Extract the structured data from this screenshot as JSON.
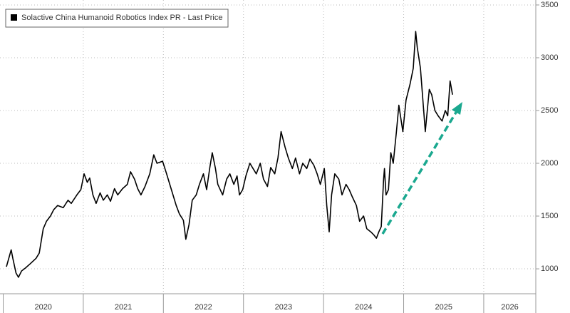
{
  "chart_data": {
    "type": "line",
    "x": [
      2020.04,
      2020.1,
      2020.12,
      2020.16,
      2020.19,
      2020.23,
      2020.28,
      2020.34,
      2020.41,
      2020.45,
      2020.5,
      2020.54,
      2020.59,
      2020.63,
      2020.68,
      2020.75,
      2020.81,
      2020.85,
      2020.92,
      2020.97,
      2021.01,
      2021.05,
      2021.08,
      2021.12,
      2021.16,
      2021.21,
      2021.25,
      2021.3,
      2021.34,
      2021.39,
      2021.43,
      2021.49,
      2021.55,
      2021.59,
      2021.64,
      2021.68,
      2021.72,
      2021.77,
      2021.83,
      2021.88,
      2021.92,
      2021.99,
      2022.04,
      2022.08,
      2022.12,
      2022.16,
      2022.2,
      2022.25,
      2022.28,
      2022.32,
      2022.36,
      2022.41,
      2022.45,
      2022.5,
      2022.54,
      2022.58,
      2022.61,
      2022.65,
      2022.68,
      2022.74,
      2022.79,
      2022.83,
      2022.88,
      2022.92,
      2022.95,
      2022.99,
      2023.03,
      2023.08,
      2023.12,
      2023.16,
      2023.21,
      2023.25,
      2023.3,
      2023.34,
      2023.39,
      2023.43,
      2023.47,
      2023.52,
      2023.56,
      2023.61,
      2023.65,
      2023.7,
      2023.74,
      2023.79,
      2023.83,
      2023.88,
      2023.92,
      2023.96,
      2024.01,
      2024.04,
      2024.07,
      2024.1,
      2024.14,
      2024.19,
      2024.23,
      2024.28,
      2024.32,
      2024.36,
      2024.41,
      2024.45,
      2024.5,
      2024.54,
      2024.59,
      2024.63,
      2024.66,
      2024.69,
      2024.72,
      2024.75,
      2024.76,
      2024.78,
      2024.81,
      2024.84,
      2024.87,
      2024.91,
      2024.94,
      2024.99,
      2025.03,
      2025.08,
      2025.12,
      2025.15,
      2025.17,
      2025.21,
      2025.24,
      2025.27,
      2025.32,
      2025.35,
      2025.39,
      2025.43,
      2025.48,
      2025.52,
      2025.55,
      2025.58,
      2025.61
    ],
    "series": [
      {
        "name": "Solactive China Humanoid Robotics Index PR - Last Price",
        "color": "#000000",
        "values": [
          1020,
          1180,
          1100,
          960,
          920,
          980,
          1010,
          1050,
          1100,
          1150,
          1380,
          1450,
          1500,
          1560,
          1600,
          1580,
          1650,
          1620,
          1700,
          1750,
          1900,
          1820,
          1860,
          1700,
          1620,
          1720,
          1650,
          1700,
          1640,
          1760,
          1700,
          1760,
          1800,
          1920,
          1850,
          1760,
          1700,
          1780,
          1900,
          2080,
          2000,
          2020,
          1900,
          1800,
          1700,
          1600,
          1520,
          1460,
          1280,
          1420,
          1650,
          1700,
          1800,
          1900,
          1750,
          1960,
          2100,
          1950,
          1800,
          1700,
          1850,
          1900,
          1800,
          1880,
          1700,
          1750,
          1880,
          2000,
          1950,
          1900,
          2000,
          1850,
          1780,
          1960,
          1900,
          2050,
          2300,
          2150,
          2050,
          1950,
          2050,
          1900,
          2000,
          1950,
          2040,
          1980,
          1900,
          1800,
          1950,
          1600,
          1350,
          1700,
          1900,
          1850,
          1700,
          1800,
          1750,
          1680,
          1600,
          1450,
          1500,
          1380,
          1350,
          1320,
          1290,
          1350,
          1400,
          1850,
          1950,
          1700,
          1750,
          2100,
          2000,
          2300,
          2550,
          2300,
          2600,
          2750,
          2900,
          3250,
          3100,
          2900,
          2600,
          2300,
          2700,
          2650,
          2500,
          2450,
          2400,
          2500,
          2450,
          2780,
          2650
        ]
      }
    ],
    "xlim": [
      2019.96,
      2026.65
    ],
    "xticks": [
      2020,
      2021,
      2022,
      2023,
      2024,
      2025,
      2026
    ],
    "ylim": [
      764,
      3547
    ],
    "yticks": [
      1000,
      1500,
      2000,
      2500,
      3000,
      3500
    ],
    "grid": true
  }
}
